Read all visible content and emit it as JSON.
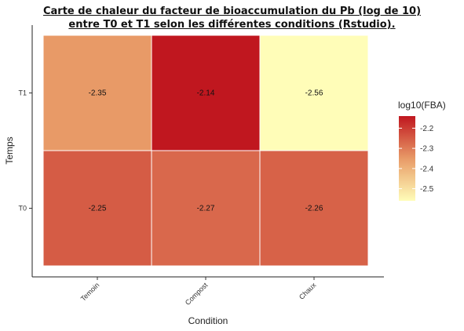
{
  "title_line1": "Carte de chaleur du facteur de bioaccumulation du Pb (log de 10)",
  "title_line2": "entre T0 et T1 selon les différentes conditions (Rstudio).",
  "chart_data": {
    "type": "heatmap",
    "title": "Carte de chaleur du facteur de bioaccumulation du Pb (log de 10) entre T0 et T1 selon les différentes conditions (Rstudio).",
    "xlabel": "Condition",
    "ylabel": "Temps",
    "x_categories": [
      "Temoin",
      "Compost",
      "Chaux"
    ],
    "y_categories": [
      "T1",
      "T0"
    ],
    "values": [
      [
        -2.35,
        -2.14,
        -2.56
      ],
      [
        -2.25,
        -2.27,
        -2.26
      ]
    ],
    "cell_labels": [
      [
        "-2.35",
        "-2.14",
        "-2.56"
      ],
      [
        "-2.25",
        "-2.27",
        "-2.26"
      ]
    ],
    "legend": {
      "title": "log10(FBA)",
      "ticks": [
        "-2.2",
        "-2.3",
        "-2.4",
        "-2.5"
      ],
      "tick_values": [
        -2.2,
        -2.3,
        -2.4,
        -2.5
      ],
      "range": [
        -2.56,
        -2.14
      ],
      "low_color": "#fffdb8",
      "mid_color": "#e89a67",
      "high_color": "#c0171f"
    },
    "grid": false,
    "legend_placement": "right"
  }
}
